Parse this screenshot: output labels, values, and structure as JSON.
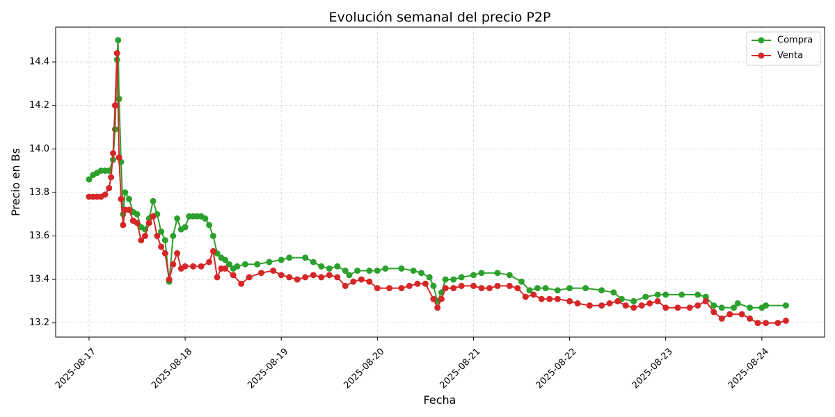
{
  "chart_data": {
    "type": "line",
    "title": "Evolución semanal del precio P2P",
    "xlabel": "Fecha",
    "ylabel": "Precio en Bs",
    "xlim": [
      "2025-08-16 15:40",
      "2025-08-24 15:40"
    ],
    "ylim": [
      13.135,
      14.56
    ],
    "x_ticks": [
      "2025-08-17",
      "2025-08-18",
      "2025-08-19",
      "2025-08-20",
      "2025-08-21",
      "2025-08-22",
      "2025-08-23",
      "2025-08-24"
    ],
    "y_ticks": [
      13.2,
      13.4,
      13.6,
      13.8,
      14.0,
      14.2,
      14.4
    ],
    "grid": true,
    "legend_position": "top-right",
    "series": [
      {
        "name": "Compra",
        "color": "#2ca02c",
        "points": [
          [
            "2025-08-17 00:00",
            13.86
          ],
          [
            "2025-08-17 01:00",
            13.88
          ],
          [
            "2025-08-17 02:00",
            13.89
          ],
          [
            "2025-08-17 03:00",
            13.9
          ],
          [
            "2025-08-17 04:00",
            13.9
          ],
          [
            "2025-08-17 05:00",
            13.9
          ],
          [
            "2025-08-17 06:00",
            13.95
          ],
          [
            "2025-08-17 06:30",
            14.09
          ],
          [
            "2025-08-17 07:00",
            14.41
          ],
          [
            "2025-08-17 07:15",
            14.5
          ],
          [
            "2025-08-17 07:30",
            14.23
          ],
          [
            "2025-08-17 08:00",
            13.94
          ],
          [
            "2025-08-17 08:30",
            13.7
          ],
          [
            "2025-08-17 09:00",
            13.8
          ],
          [
            "2025-08-17 10:00",
            13.77
          ],
          [
            "2025-08-17 11:00",
            13.71
          ],
          [
            "2025-08-17 12:00",
            13.7
          ],
          [
            "2025-08-17 13:00",
            13.64
          ],
          [
            "2025-08-17 14:00",
            13.63
          ],
          [
            "2025-08-17 15:00",
            13.68
          ],
          [
            "2025-08-17 16:00",
            13.76
          ],
          [
            "2025-08-17 17:00",
            13.7
          ],
          [
            "2025-08-17 18:00",
            13.62
          ],
          [
            "2025-08-17 19:00",
            13.58
          ],
          [
            "2025-08-17 20:00",
            13.39
          ],
          [
            "2025-08-17 21:00",
            13.6
          ],
          [
            "2025-08-17 22:00",
            13.68
          ],
          [
            "2025-08-17 23:00",
            13.63
          ],
          [
            "2025-08-18 00:00",
            13.64
          ],
          [
            "2025-08-18 01:00",
            13.69
          ],
          [
            "2025-08-18 02:00",
            13.69
          ],
          [
            "2025-08-18 03:00",
            13.69
          ],
          [
            "2025-08-18 04:00",
            13.69
          ],
          [
            "2025-08-18 05:00",
            13.68
          ],
          [
            "2025-08-18 06:00",
            13.65
          ],
          [
            "2025-08-18 07:00",
            13.6
          ],
          [
            "2025-08-18 08:00",
            13.52
          ],
          [
            "2025-08-18 09:00",
            13.5
          ],
          [
            "2025-08-18 10:00",
            13.49
          ],
          [
            "2025-08-18 11:00",
            13.47
          ],
          [
            "2025-08-18 12:00",
            13.45
          ],
          [
            "2025-08-18 13:00",
            13.46
          ],
          [
            "2025-08-18 15:00",
            13.47
          ],
          [
            "2025-08-18 18:00",
            13.47
          ],
          [
            "2025-08-18 21:00",
            13.48
          ],
          [
            "2025-08-19 00:00",
            13.49
          ],
          [
            "2025-08-19 02:00",
            13.5
          ],
          [
            "2025-08-19 06:00",
            13.5
          ],
          [
            "2025-08-19 08:00",
            13.48
          ],
          [
            "2025-08-19 10:00",
            13.46
          ],
          [
            "2025-08-19 12:00",
            13.45
          ],
          [
            "2025-08-19 14:00",
            13.46
          ],
          [
            "2025-08-19 16:00",
            13.44
          ],
          [
            "2025-08-19 17:00",
            13.42
          ],
          [
            "2025-08-19 19:00",
            13.44
          ],
          [
            "2025-08-19 22:00",
            13.44
          ],
          [
            "2025-08-20 00:00",
            13.44
          ],
          [
            "2025-08-20 02:00",
            13.45
          ],
          [
            "2025-08-20 06:00",
            13.45
          ],
          [
            "2025-08-20 09:00",
            13.44
          ],
          [
            "2025-08-20 11:00",
            13.43
          ],
          [
            "2025-08-20 13:00",
            13.41
          ],
          [
            "2025-08-20 14:00",
            13.37
          ],
          [
            "2025-08-20 15:00",
            13.3
          ],
          [
            "2025-08-20 16:00",
            13.34
          ],
          [
            "2025-08-20 17:00",
            13.4
          ],
          [
            "2025-08-20 19:00",
            13.4
          ],
          [
            "2025-08-20 21:00",
            13.41
          ],
          [
            "2025-08-21 00:00",
            13.42
          ],
          [
            "2025-08-21 02:00",
            13.43
          ],
          [
            "2025-08-21 06:00",
            13.43
          ],
          [
            "2025-08-21 09:00",
            13.42
          ],
          [
            "2025-08-21 12:00",
            13.39
          ],
          [
            "2025-08-21 14:00",
            13.35
          ],
          [
            "2025-08-21 16:00",
            13.36
          ],
          [
            "2025-08-21 18:00",
            13.36
          ],
          [
            "2025-08-21 21:00",
            13.35
          ],
          [
            "2025-08-22 00:00",
            13.36
          ],
          [
            "2025-08-22 04:00",
            13.36
          ],
          [
            "2025-08-22 08:00",
            13.35
          ],
          [
            "2025-08-22 11:00",
            13.34
          ],
          [
            "2025-08-22 13:00",
            13.31
          ],
          [
            "2025-08-22 16:00",
            13.3
          ],
          [
            "2025-08-22 19:00",
            13.32
          ],
          [
            "2025-08-22 22:00",
            13.33
          ],
          [
            "2025-08-23 00:00",
            13.33
          ],
          [
            "2025-08-23 04:00",
            13.33
          ],
          [
            "2025-08-23 08:00",
            13.33
          ],
          [
            "2025-08-23 10:00",
            13.32
          ],
          [
            "2025-08-23 12:00",
            13.28
          ],
          [
            "2025-08-23 14:00",
            13.27
          ],
          [
            "2025-08-23 17:00",
            13.27
          ],
          [
            "2025-08-23 18:00",
            13.29
          ],
          [
            "2025-08-23 21:00",
            13.27
          ],
          [
            "2025-08-24 00:00",
            13.27
          ],
          [
            "2025-08-24 01:00",
            13.28
          ],
          [
            "2025-08-24 06:00",
            13.28
          ]
        ]
      },
      {
        "name": "Venta",
        "color": "#d62728",
        "points": [
          [
            "2025-08-17 00:00",
            13.78
          ],
          [
            "2025-08-17 01:00",
            13.78
          ],
          [
            "2025-08-17 02:00",
            13.78
          ],
          [
            "2025-08-17 03:00",
            13.78
          ],
          [
            "2025-08-17 04:00",
            13.79
          ],
          [
            "2025-08-17 05:00",
            13.82
          ],
          [
            "2025-08-17 05:30",
            13.87
          ],
          [
            "2025-08-17 06:00",
            13.98
          ],
          [
            "2025-08-17 06:30",
            14.2
          ],
          [
            "2025-08-17 07:00",
            14.44
          ],
          [
            "2025-08-17 07:30",
            13.96
          ],
          [
            "2025-08-17 08:00",
            13.77
          ],
          [
            "2025-08-17 08:30",
            13.65
          ],
          [
            "2025-08-17 09:00",
            13.72
          ],
          [
            "2025-08-17 10:00",
            13.72
          ],
          [
            "2025-08-17 11:00",
            13.67
          ],
          [
            "2025-08-17 12:00",
            13.66
          ],
          [
            "2025-08-17 13:00",
            13.58
          ],
          [
            "2025-08-17 14:00",
            13.6
          ],
          [
            "2025-08-17 15:00",
            13.66
          ],
          [
            "2025-08-17 16:00",
            13.69
          ],
          [
            "2025-08-17 17:00",
            13.6
          ],
          [
            "2025-08-17 18:00",
            13.55
          ],
          [
            "2025-08-17 19:00",
            13.52
          ],
          [
            "2025-08-17 20:00",
            13.4
          ],
          [
            "2025-08-17 21:00",
            13.47
          ],
          [
            "2025-08-17 22:00",
            13.52
          ],
          [
            "2025-08-17 23:00",
            13.45
          ],
          [
            "2025-08-18 00:00",
            13.46
          ],
          [
            "2025-08-18 02:00",
            13.46
          ],
          [
            "2025-08-18 04:00",
            13.46
          ],
          [
            "2025-08-18 06:00",
            13.48
          ],
          [
            "2025-08-18 07:00",
            13.53
          ],
          [
            "2025-08-18 08:00",
            13.41
          ],
          [
            "2025-08-18 09:00",
            13.45
          ],
          [
            "2025-08-18 10:00",
            13.45
          ],
          [
            "2025-08-18 12:00",
            13.42
          ],
          [
            "2025-08-18 14:00",
            13.38
          ],
          [
            "2025-08-18 16:00",
            13.41
          ],
          [
            "2025-08-18 19:00",
            13.43
          ],
          [
            "2025-08-18 22:00",
            13.44
          ],
          [
            "2025-08-19 00:00",
            13.42
          ],
          [
            "2025-08-19 02:00",
            13.41
          ],
          [
            "2025-08-19 04:00",
            13.4
          ],
          [
            "2025-08-19 06:00",
            13.41
          ],
          [
            "2025-08-19 08:00",
            13.42
          ],
          [
            "2025-08-19 10:00",
            13.41
          ],
          [
            "2025-08-19 12:00",
            13.42
          ],
          [
            "2025-08-19 14:00",
            13.41
          ],
          [
            "2025-08-19 16:00",
            13.37
          ],
          [
            "2025-08-19 18:00",
            13.39
          ],
          [
            "2025-08-19 20:00",
            13.4
          ],
          [
            "2025-08-19 22:00",
            13.39
          ],
          [
            "2025-08-20 00:00",
            13.36
          ],
          [
            "2025-08-20 03:00",
            13.36
          ],
          [
            "2025-08-20 06:00",
            13.36
          ],
          [
            "2025-08-20 08:00",
            13.37
          ],
          [
            "2025-08-20 10:00",
            13.38
          ],
          [
            "2025-08-20 12:00",
            13.38
          ],
          [
            "2025-08-20 14:00",
            13.31
          ],
          [
            "2025-08-20 15:00",
            13.27
          ],
          [
            "2025-08-20 16:00",
            13.31
          ],
          [
            "2025-08-20 17:00",
            13.36
          ],
          [
            "2025-08-20 19:00",
            13.36
          ],
          [
            "2025-08-20 21:00",
            13.37
          ],
          [
            "2025-08-21 00:00",
            13.37
          ],
          [
            "2025-08-21 02:00",
            13.36
          ],
          [
            "2025-08-21 04:00",
            13.36
          ],
          [
            "2025-08-21 06:00",
            13.37
          ],
          [
            "2025-08-21 09:00",
            13.37
          ],
          [
            "2025-08-21 11:00",
            13.36
          ],
          [
            "2025-08-21 13:00",
            13.32
          ],
          [
            "2025-08-21 15:00",
            13.33
          ],
          [
            "2025-08-21 17:00",
            13.31
          ],
          [
            "2025-08-21 19:00",
            13.31
          ],
          [
            "2025-08-21 21:00",
            13.31
          ],
          [
            "2025-08-22 00:00",
            13.3
          ],
          [
            "2025-08-22 02:00",
            13.29
          ],
          [
            "2025-08-22 05:00",
            13.28
          ],
          [
            "2025-08-22 08:00",
            13.28
          ],
          [
            "2025-08-22 10:00",
            13.29
          ],
          [
            "2025-08-22 12:00",
            13.3
          ],
          [
            "2025-08-22 14:00",
            13.28
          ],
          [
            "2025-08-22 16:00",
            13.27
          ],
          [
            "2025-08-22 18:00",
            13.28
          ],
          [
            "2025-08-22 20:00",
            13.29
          ],
          [
            "2025-08-22 22:00",
            13.3
          ],
          [
            "2025-08-23 00:00",
            13.27
          ],
          [
            "2025-08-23 03:00",
            13.27
          ],
          [
            "2025-08-23 06:00",
            13.27
          ],
          [
            "2025-08-23 08:00",
            13.28
          ],
          [
            "2025-08-23 10:00",
            13.3
          ],
          [
            "2025-08-23 12:00",
            13.25
          ],
          [
            "2025-08-23 14:00",
            13.22
          ],
          [
            "2025-08-23 16:00",
            13.24
          ],
          [
            "2025-08-23 19:00",
            13.24
          ],
          [
            "2025-08-23 21:00",
            13.22
          ],
          [
            "2025-08-23 23:00",
            13.2
          ],
          [
            "2025-08-24 01:00",
            13.2
          ],
          [
            "2025-08-24 04:00",
            13.2
          ],
          [
            "2025-08-24 06:00",
            13.21
          ]
        ]
      }
    ]
  }
}
